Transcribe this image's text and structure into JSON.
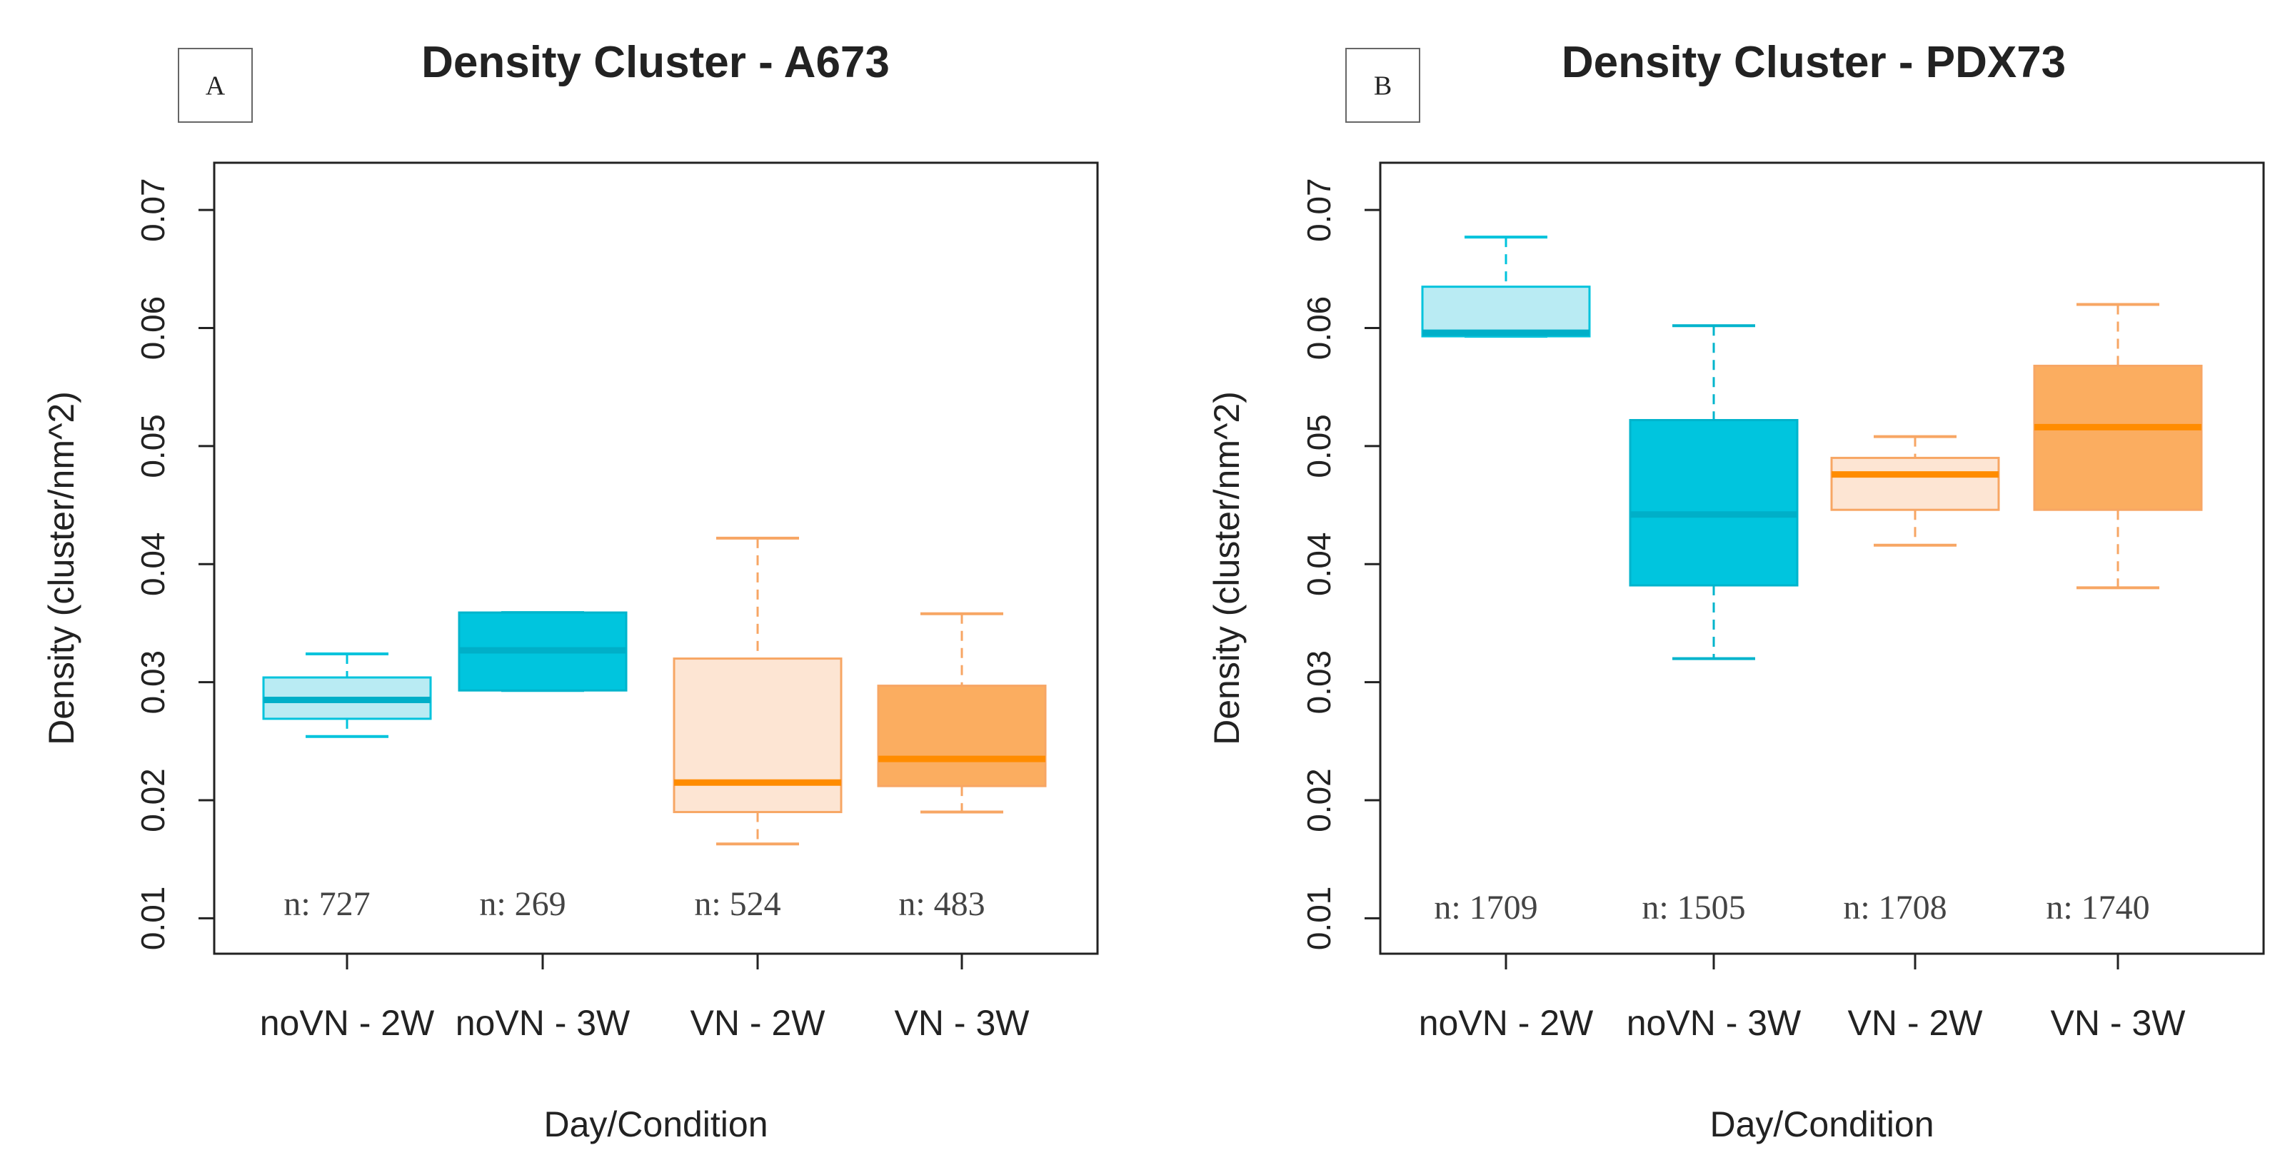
{
  "chart_data": [
    {
      "type": "box",
      "panel_label": "A",
      "title": "Density Cluster - A673",
      "xlabel": "Day/Condition",
      "ylabel": "Density (cluster/nm^2)",
      "ylim": [
        0.007,
        0.074
      ],
      "yticks": [
        "0.01",
        "0.02",
        "0.03",
        "0.04",
        "0.05",
        "0.06",
        "0.07"
      ],
      "categories": [
        "noVN - 2W",
        "noVN - 3W",
        "VN - 2W",
        "VN - 3W"
      ],
      "boxes": [
        {
          "category": "noVN - 2W",
          "min": 0.0254,
          "q1": 0.0269,
          "median": 0.0285,
          "q3": 0.0304,
          "max": 0.0324,
          "n_label": "n: 727",
          "fill": "#b9ebf3",
          "stroke": "#00c3dc"
        },
        {
          "category": "noVN - 3W",
          "min": 0.0293,
          "q1": 0.0293,
          "median": 0.0327,
          "q3": 0.0359,
          "max": 0.0359,
          "n_label": "n: 269",
          "fill": "#00c5de",
          "stroke": "#00b4cc"
        },
        {
          "category": "VN - 2W",
          "min": 0.0163,
          "q1": 0.019,
          "median": 0.0215,
          "q3": 0.032,
          "max": 0.0422,
          "n_label": "n: 524",
          "fill": "#fde5d3",
          "stroke": "#f7a664"
        },
        {
          "category": "VN - 3W",
          "min": 0.019,
          "q1": 0.0212,
          "median": 0.0235,
          "q3": 0.0297,
          "max": 0.0358,
          "n_label": "n: 483",
          "fill": "#fbad60",
          "stroke": "#f7a664"
        }
      ]
    },
    {
      "type": "box",
      "panel_label": "B",
      "title": "Density Cluster - PDX73",
      "xlabel": "Day/Condition",
      "ylabel": "Density (cluster/nm^2)",
      "ylim": [
        0.007,
        0.074
      ],
      "yticks": [
        "0.01",
        "0.02",
        "0.03",
        "0.04",
        "0.05",
        "0.06",
        "0.07"
      ],
      "categories": [
        "noVN - 2W",
        "noVN - 3W",
        "VN - 2W",
        "VN - 3W"
      ],
      "boxes": [
        {
          "category": "noVN - 2W",
          "min": 0.0593,
          "q1": 0.0593,
          "median": 0.0596,
          "q3": 0.0635,
          "max": 0.0677,
          "n_label": "n: 1709",
          "fill": "#b9ebf3",
          "stroke": "#00c3dc"
        },
        {
          "category": "noVN - 3W",
          "min": 0.032,
          "q1": 0.0382,
          "median": 0.0442,
          "q3": 0.0522,
          "max": 0.0602,
          "n_label": "n: 1505",
          "fill": "#00c5de",
          "stroke": "#00b4cc"
        },
        {
          "category": "VN - 2W",
          "min": 0.0416,
          "q1": 0.0446,
          "median": 0.0476,
          "q3": 0.049,
          "max": 0.0508,
          "n_label": "n: 1708",
          "fill": "#fde5d3",
          "stroke": "#f7a664"
        },
        {
          "category": "VN - 3W",
          "min": 0.038,
          "q1": 0.0446,
          "median": 0.0516,
          "q3": 0.0568,
          "max": 0.062,
          "n_label": "n: 1740",
          "fill": "#fbad60",
          "stroke": "#f7a664"
        }
      ]
    }
  ],
  "colors": {
    "median_cyan": "#00afc8",
    "median_orange": "#ff8c00"
  }
}
